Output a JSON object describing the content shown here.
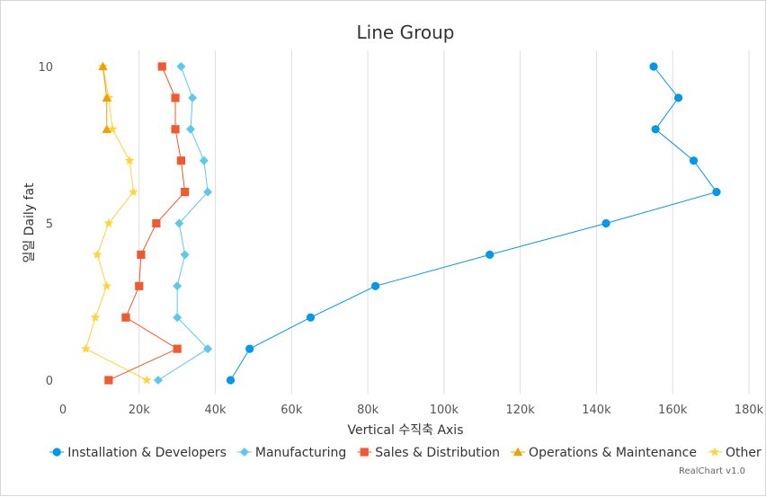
{
  "chart_data": {
    "type": "line",
    "title": "Line Group",
    "xlabel": "Vertical 수직축 Axis",
    "ylabel": "일일 Daily fat",
    "xlim": [
      0,
      180000
    ],
    "ylim": [
      0,
      10
    ],
    "x_ticks": [
      0,
      20000,
      40000,
      60000,
      80000,
      100000,
      120000,
      140000,
      160000,
      180000
    ],
    "x_tick_labels": [
      "0",
      "20k",
      "40k",
      "60k",
      "80k",
      "100k",
      "120k",
      "140k",
      "160k",
      "180k"
    ],
    "y_ticks": [
      0,
      5,
      10
    ],
    "y_tick_labels": [
      "0",
      "5",
      "10"
    ],
    "grid": "vertical",
    "legend_position": "bottom",
    "series": [
      {
        "name": "Installation & Developers",
        "color": "#0098e8",
        "marker": "circle",
        "points": [
          [
            44000,
            0
          ],
          [
            49000,
            1
          ],
          [
            65000,
            2
          ],
          [
            82000,
            3
          ],
          [
            112000,
            4
          ],
          [
            142500,
            5
          ],
          [
            171500,
            6
          ],
          [
            165500,
            7
          ],
          [
            155500,
            8
          ],
          [
            161500,
            9
          ],
          [
            155000,
            10
          ]
        ]
      },
      {
        "name": "Manufacturing",
        "color": "#5cc8f0",
        "marker": "diamond",
        "points": [
          [
            25000,
            0
          ],
          [
            38000,
            1
          ],
          [
            30000,
            2
          ],
          [
            30000,
            3
          ],
          [
            32000,
            4
          ],
          [
            30500,
            5
          ],
          [
            38000,
            6
          ],
          [
            37000,
            7
          ],
          [
            33500,
            8
          ],
          [
            34000,
            9
          ],
          [
            31000,
            10
          ]
        ]
      },
      {
        "name": "Sales & Distribution",
        "color": "#f05a2e",
        "marker": "square",
        "points": [
          [
            12000,
            0
          ],
          [
            30000,
            1
          ],
          [
            16500,
            2
          ],
          [
            20000,
            3
          ],
          [
            20500,
            4
          ],
          [
            24500,
            5
          ],
          [
            32000,
            6
          ],
          [
            31000,
            7
          ],
          [
            29500,
            8
          ],
          [
            29500,
            9
          ],
          [
            26000,
            10
          ]
        ]
      },
      {
        "name": "Operations & Maintenance",
        "color": "#f0a000",
        "marker": "triangle",
        "points": [
          [
            11500,
            8
          ],
          [
            11500,
            9
          ],
          [
            10500,
            10
          ]
        ]
      },
      {
        "name": "Other",
        "color": "#ffd43a",
        "marker": "star",
        "points": [
          [
            22000,
            0
          ],
          [
            6000,
            1
          ],
          [
            8500,
            2
          ],
          [
            11500,
            3
          ],
          [
            9000,
            4
          ],
          [
            12000,
            5
          ],
          [
            18500,
            6
          ],
          [
            17500,
            7
          ],
          [
            13000,
            8
          ],
          [
            12000,
            9
          ],
          [
            10500,
            10
          ]
        ]
      }
    ]
  },
  "credit": "RealChart v1.0"
}
